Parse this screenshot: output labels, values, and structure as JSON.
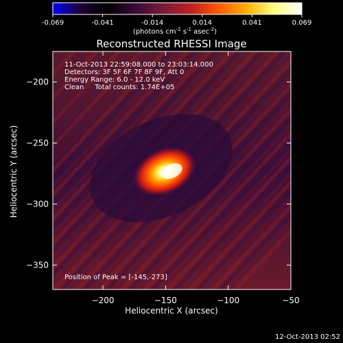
{
  "colorbar": {
    "ticks": [
      "-0.069",
      "-0.041",
      "-0.014",
      "0.014",
      "0.041",
      "0.069"
    ],
    "units_main": "(photons cm",
    "units_sup1": "-2",
    "units_mid": " s",
    "units_sup2": "-1",
    "units_tail": " asec",
    "units_sup3": "-2",
    "units_close": ")",
    "stops": [
      "#0000ff",
      "#1b0033",
      "#000000",
      "#3a0a3a",
      "#7a1a3a",
      "#c02020",
      "#ff5a00",
      "#ffb000",
      "#ffff80",
      "#ffffff"
    ]
  },
  "chart_data": {
    "type": "heatmap",
    "title": "Reconstructed RHESSI Image",
    "xlabel": "Heliocentric X (arcsec)",
    "ylabel": "Heliocentric Y (arcsec)",
    "xlim": [
      -240,
      -50
    ],
    "ylim": [
      -370,
      -175
    ],
    "x_ticks": [
      -200,
      -150,
      -100,
      -50
    ],
    "y_ticks": [
      -200,
      -250,
      -300,
      -350
    ],
    "colorbar_range": [
      -0.069,
      0.069
    ],
    "peak": {
      "x": -145,
      "y": -273,
      "value": 0.069
    },
    "annotations": [
      "11-Oct-2013 22:59:08.000 to 23:03:14.000",
      "Detectors: 3F 5F 6F 7F 8F 9F, Att 0",
      "Energy Range: 6.0 - 12.0 keV",
      "Clean     Total counts: 1.74E+05"
    ],
    "peak_label": "Position of Peak = [-145,-273]"
  },
  "footer": {
    "timestamp": "12-Oct-2013 02:52"
  }
}
